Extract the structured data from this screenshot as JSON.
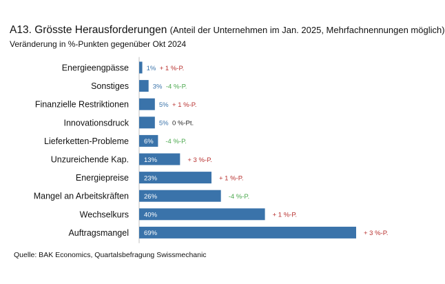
{
  "header": {
    "title_main": "A13. Grösste Herausforderungen",
    "title_sub": "(Anteil der Unternehmen im Jan. 2025, Mehrfachnennungen möglich)",
    "subtitle": "Veränderung in %-Punkten gegenüber Okt 2024"
  },
  "footer": {
    "source": "Quelle: BAK Economics, Quartalsbefragung Swissmechanic"
  },
  "colors": {
    "bar": "#3a73aa",
    "positive": "#b8312f",
    "negative": "#4aa84d",
    "neutral": "#222222",
    "value_inside": "#ffffff",
    "value_outside": "#3a73aa"
  },
  "chart_data": {
    "type": "bar",
    "orientation": "horizontal",
    "categories": [
      "Energieengpässe",
      "Sonstiges",
      "Finanzielle Restriktionen",
      "Innovationsdruck",
      "Lieferketten-Probleme",
      "Unzureichende Kap.",
      "Energiepreise",
      "Mangel an Arbeitskräften",
      "Wechselkurs",
      "Auftragsmangel"
    ],
    "values": [
      1,
      3,
      5,
      5,
      6,
      13,
      23,
      26,
      40,
      69
    ],
    "value_labels": [
      "1%",
      "3%",
      "5%",
      "5%",
      "6%",
      "13%",
      "23%",
      "26%",
      "40%",
      "69%"
    ],
    "changes": [
      {
        "label": "+ 1 %-P.",
        "sign": "positive"
      },
      {
        "label": "-4 %-P.",
        "sign": "negative"
      },
      {
        "label": "+ 1 %-P.",
        "sign": "positive"
      },
      {
        "label": "0 %-Pt.",
        "sign": "neutral"
      },
      {
        "label": "-4 %-P.",
        "sign": "negative"
      },
      {
        "label": "+ 3 %-P.",
        "sign": "positive"
      },
      {
        "label": "+ 1 %-P.",
        "sign": "positive"
      },
      {
        "label": "-4 %-P.",
        "sign": "negative"
      },
      {
        "label": "+ 1 %-P.",
        "sign": "positive"
      },
      {
        "label": "+ 3 %-P.",
        "sign": "positive"
      }
    ],
    "xlim": [
      0,
      69
    ],
    "grid": false,
    "legend": "none"
  }
}
